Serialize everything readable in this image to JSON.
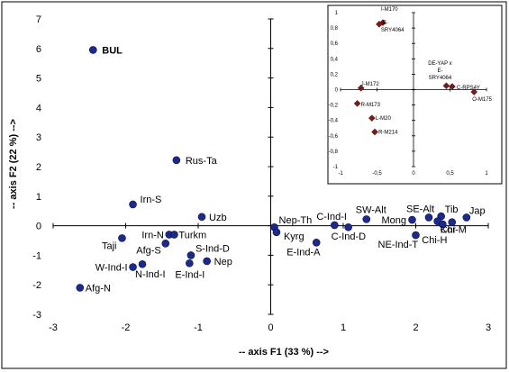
{
  "chart_data": [
    {
      "type": "scatter",
      "xlabel": "-- axis F1 (33 %) -->",
      "ylabel": "-- axis F2 (22 %) -->",
      "xlim": [
        -3,
        3
      ],
      "ylim": [
        -3,
        7
      ],
      "xticks": [
        "-3",
        "-2",
        "-1",
        "0",
        "1",
        "2",
        "3"
      ],
      "yticks": [
        "-3",
        "-2",
        "-1",
        "0",
        "1",
        "2",
        "3",
        "4",
        "5",
        "6",
        "7"
      ],
      "grid": false,
      "marker_color": "#1c2a8c",
      "points": [
        {
          "label": "BUL",
          "x": -2.45,
          "y": 5.95,
          "bold": true
        },
        {
          "label": "Rus-Ta",
          "x": -1.3,
          "y": 2.22
        },
        {
          "label": "Irn-S",
          "x": -1.9,
          "y": 0.72
        },
        {
          "label": "Uzb",
          "x": -0.95,
          "y": 0.3
        },
        {
          "label": "Irn-N",
          "x": -1.4,
          "y": -0.3
        },
        {
          "label": "Turkm",
          "x": -1.33,
          "y": -0.3
        },
        {
          "label": "Taji",
          "x": -2.05,
          "y": -0.42
        },
        {
          "label": "Afg-S",
          "x": -1.45,
          "y": -0.6
        },
        {
          "label": "S-Ind-D",
          "x": -1.1,
          "y": -1.0
        },
        {
          "label": "Nep",
          "x": -0.88,
          "y": -1.2
        },
        {
          "label": "E-Ind-I",
          "x": -1.12,
          "y": -1.27
        },
        {
          "label": "N-Ind-I",
          "x": -1.77,
          "y": -1.3
        },
        {
          "label": "W-Ind-I",
          "x": -1.9,
          "y": -1.4
        },
        {
          "label": "Afg-N",
          "x": -2.63,
          "y": -2.1
        },
        {
          "label": "Nep-Th",
          "x": 0.05,
          "y": -0.05
        },
        {
          "label": "Kyrg",
          "x": 0.08,
          "y": -0.22
        },
        {
          "label": "C-Ind-I",
          "x": 0.88,
          "y": 0.02
        },
        {
          "label": "C-Ind-D",
          "x": 1.07,
          "y": -0.05
        },
        {
          "label": "E-Ind-A",
          "x": 0.63,
          "y": -0.57
        },
        {
          "label": "SW-Alt",
          "x": 1.32,
          "y": 0.22
        },
        {
          "label": "Mong",
          "x": 1.95,
          "y": 0.2
        },
        {
          "label": "NE-Ind-T",
          "x": 2.0,
          "y": -0.32
        },
        {
          "label": "SE-Alt",
          "x": 2.18,
          "y": 0.28
        },
        {
          "label": "Tib",
          "x": 2.35,
          "y": 0.32
        },
        {
          "label": "Chi-M",
          "x": 2.3,
          "y": 0.15
        },
        {
          "label": "Chi-H",
          "x": 2.37,
          "y": 0.05
        },
        {
          "label": "Kor",
          "x": 2.5,
          "y": 0.12
        },
        {
          "label": "Jap",
          "x": 2.7,
          "y": 0.28
        }
      ]
    },
    {
      "type": "scatter",
      "xlim": [
        -1,
        1
      ],
      "ylim": [
        -1,
        1
      ],
      "xticks": [
        "-1",
        "-0,5",
        "0",
        "0,5",
        "1"
      ],
      "yticks": [
        "-1",
        "-0,8",
        "-0,6",
        "-0,4",
        "-0,2",
        "0",
        "0,2",
        "0,4",
        "0,6",
        "0,8",
        "1"
      ],
      "grid": false,
      "marker_color": "#7a1a1a",
      "points": [
        {
          "label": "I-M170",
          "x": -0.42,
          "y": 0.87
        },
        {
          "label": "E-SRY4064",
          "x": -0.47,
          "y": 0.85
        },
        {
          "label": "J-M172",
          "x": -0.72,
          "y": 0.02
        },
        {
          "label": "R-M173",
          "x": -0.77,
          "y": -0.18
        },
        {
          "label": "L-M20",
          "x": -0.57,
          "y": -0.37
        },
        {
          "label": "R-M214",
          "x": -0.53,
          "y": -0.55
        },
        {
          "label": "DE-YAP x E-SRY4064",
          "x": 0.45,
          "y": 0.05
        },
        {
          "label": "C-RPS4Y",
          "x": 0.53,
          "y": 0.04
        },
        {
          "label": "O-M175",
          "x": 0.83,
          "y": -0.03
        }
      ]
    }
  ]
}
